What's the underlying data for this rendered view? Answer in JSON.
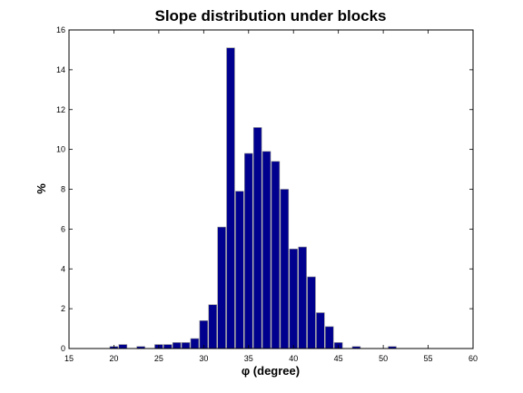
{
  "chart_data": {
    "type": "bar",
    "title": "Slope distribution under blocks",
    "xlabel": "φ (degree)",
    "ylabel": "%",
    "xlim": [
      15,
      60
    ],
    "ylim": [
      0,
      16
    ],
    "xticks": [
      15,
      20,
      25,
      30,
      35,
      40,
      45,
      50,
      55,
      60
    ],
    "yticks": [
      0,
      2,
      4,
      6,
      8,
      10,
      12,
      14,
      16
    ],
    "bin_width": 1,
    "grid": false,
    "colors": {
      "bar": "#00008f",
      "bar_edge": "#8c8c8c"
    },
    "x": [
      20,
      21,
      23,
      25,
      26,
      27,
      28,
      29,
      30,
      31,
      32,
      33,
      34,
      35,
      36,
      37,
      38,
      39,
      40,
      41,
      42,
      43,
      44,
      45,
      47,
      51
    ],
    "values": [
      0.1,
      0.2,
      0.1,
      0.2,
      0.2,
      0.3,
      0.3,
      0.5,
      1.4,
      2.2,
      6.1,
      15.1,
      7.9,
      9.8,
      11.1,
      9.9,
      9.4,
      8.0,
      5.0,
      5.1,
      3.6,
      1.8,
      1.1,
      0.3,
      0.1,
      0.1
    ]
  }
}
